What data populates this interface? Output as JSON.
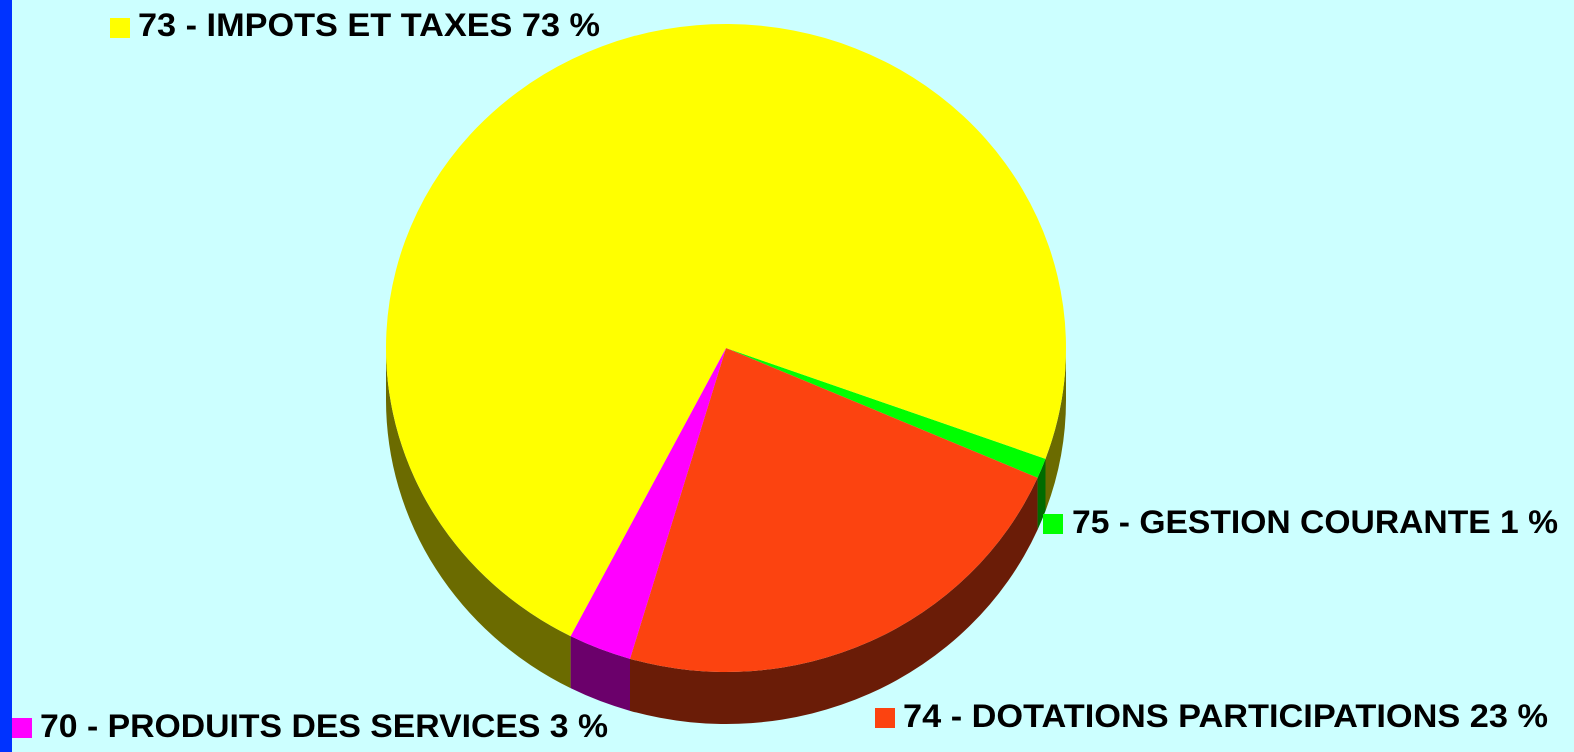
{
  "chart_data": {
    "type": "pie",
    "categories": [
      "75 - GESTION COURANTE",
      "74 - DOTATIONS PARTICIPATIONS",
      "70 - PRODUITS DES SERVICES",
      "73 - IMPOTS ET TAXES"
    ],
    "values": [
      1,
      23,
      3,
      73
    ],
    "value_labels": [
      "1 %",
      "23 %",
      "3 %",
      "73 %"
    ],
    "colors": [
      "#00ff00",
      "#fc4310",
      "#ff00ff",
      "#ffff00"
    ]
  }
}
